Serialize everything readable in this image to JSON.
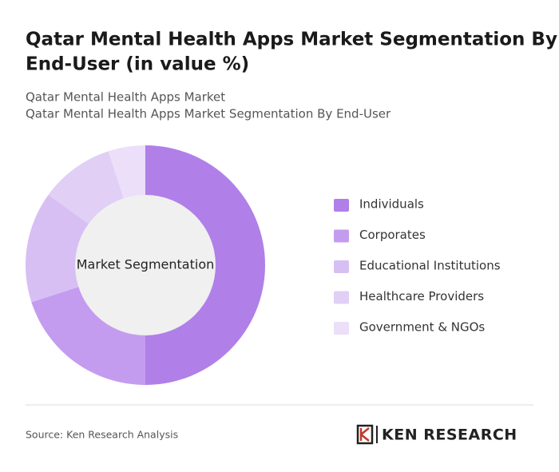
{
  "chart_data": {
    "type": "donut",
    "title": [
      "Qatar Mental Health Apps Market Segmentation By",
      "End-User (in value %)"
    ],
    "subtitle": [
      "Qatar Mental Health Apps Market",
      "Qatar Mental Health Apps Market Segmentation By End-User"
    ],
    "center_label": "Market Segmentation",
    "categories": [
      "Individuals",
      "Corporates",
      "Educational Institutions",
      "Healthcare Providers",
      "Government & NGOs"
    ],
    "values": [
      50,
      20,
      15,
      10,
      5
    ],
    "colors": [
      "#b07fe8",
      "#c49cef",
      "#d7bff4",
      "#e1cff6",
      "#ebdff9"
    ],
    "legend": "right"
  },
  "source": "Source: Ken Research Analysis",
  "logo": "KEN RESEARCH"
}
